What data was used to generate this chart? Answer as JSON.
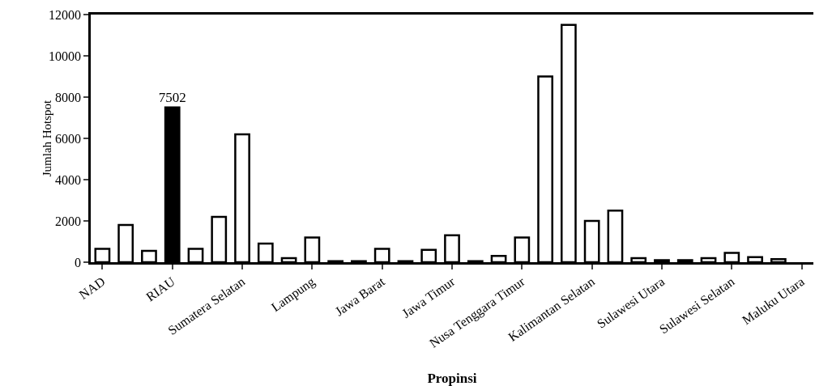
{
  "chart_data": {
    "type": "bar",
    "xlabel": "Propinsi",
    "ylabel": "Jumlah Hotspot",
    "categories": [
      "NAD",
      null,
      null,
      "RIAU",
      null,
      null,
      "Sumatera Selatan",
      null,
      null,
      "Lampung",
      null,
      null,
      "Jawa Barat",
      null,
      null,
      "Jawa Timur",
      null,
      null,
      "Nusa Tenggara Timur",
      null,
      null,
      "Kalimantan Selatan",
      null,
      null,
      "Sulawesi Utara",
      null,
      null,
      "Sulawesi Selatan",
      null,
      null,
      "Maluku Utara"
    ],
    "values": [
      650,
      1800,
      550,
      7502,
      650,
      2200,
      6200,
      900,
      200,
      1200,
      50,
      50,
      650,
      50,
      600,
      1300,
      50,
      300,
      1200,
      9000,
      11500,
      2000,
      2500,
      200,
      100,
      100,
      200,
      450,
      250,
      150,
      null
    ],
    "colors": [
      "#ffffff",
      "#ffffff",
      "#ffffff",
      "#000000",
      "#ffffff",
      "#ffffff",
      "#ffffff",
      "#ffffff",
      "#ffffff",
      "#ffffff",
      "#ffffff",
      "#ffffff",
      "#ffffff",
      "#ffffff",
      "#ffffff",
      "#ffffff",
      "#ffffff",
      "#ffffff",
      "#ffffff",
      "#ffffff",
      "#ffffff",
      "#ffffff",
      "#ffffff",
      "#ffffff",
      "#ffffff",
      "#ffffff",
      "#ffffff",
      "#ffffff",
      "#ffffff",
      "#ffffff",
      "#ffffff"
    ],
    "value_labels": [
      null,
      null,
      null,
      "7502",
      null,
      null,
      null,
      null,
      null,
      null,
      null,
      null,
      null,
      null,
      null,
      null,
      null,
      null,
      null,
      null,
      null,
      null,
      null,
      null,
      null,
      null,
      null,
      null,
      null,
      null,
      null
    ],
    "ylim": [
      0,
      12000
    ],
    "yticks": [
      0,
      2000,
      4000,
      6000,
      8000,
      10000,
      12000
    ],
    "grid": false
  }
}
